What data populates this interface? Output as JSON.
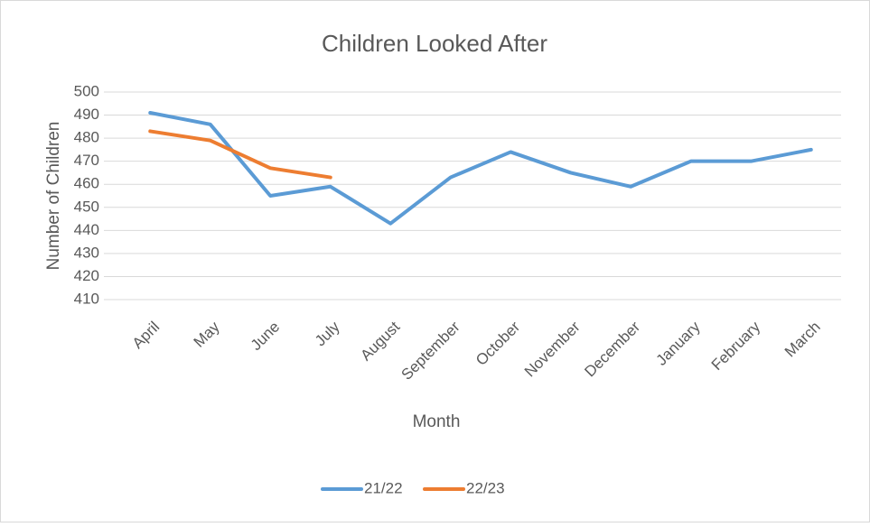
{
  "chart_data": {
    "type": "line",
    "title": "Children Looked After",
    "x_label": "Month",
    "y_label": "Number of Children",
    "categories": [
      "April",
      "May",
      "June",
      "July",
      "August",
      "September",
      "October",
      "November",
      "December",
      "January",
      "February",
      "March"
    ],
    "series": [
      {
        "name": "21/22",
        "color": "#5b9bd5",
        "values": [
          491,
          486,
          455,
          459,
          443,
          463,
          474,
          465,
          459,
          470,
          470,
          475
        ]
      },
      {
        "name": "22/23",
        "color": "#ed7d31",
        "values": [
          483,
          479,
          467,
          463,
          null,
          null,
          null,
          null,
          null,
          null,
          null,
          null
        ]
      }
    ],
    "ylim": [
      410,
      500
    ],
    "yticks": [
      410,
      420,
      430,
      440,
      450,
      460,
      470,
      480,
      490,
      500
    ],
    "grid": true,
    "legend": "bottom"
  }
}
